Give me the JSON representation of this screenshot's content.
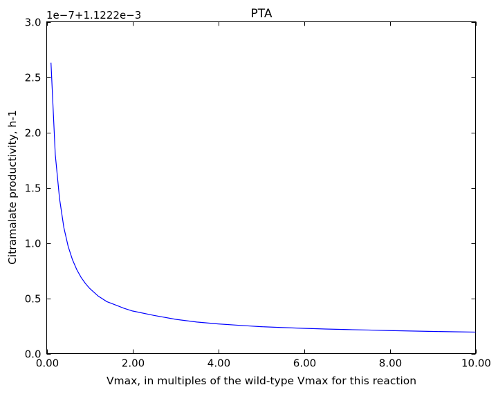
{
  "chart_data": {
    "type": "line",
    "title": "PTA",
    "xlabel": "Vmax, in multiples of the wild-type Vmax for this reaction",
    "ylabel": "Citramalate productivity, h-1",
    "y_offset_text": "1e−7+1.1222e−3",
    "xlim": [
      0,
      10
    ],
    "ylim": [
      0,
      3
    ],
    "x_ticks": [
      0,
      2,
      4,
      6,
      8,
      10
    ],
    "x_tick_labels": [
      "0.00",
      "2.00",
      "4.00",
      "6.00",
      "8.00",
      "10.00"
    ],
    "y_ticks": [
      0,
      0.5,
      1,
      1.5,
      2,
      2.5,
      3
    ],
    "y_tick_labels": [
      "0.0",
      "0.5",
      "1.0",
      "1.5",
      "2.0",
      "2.5",
      "3.0"
    ],
    "grid": false,
    "series": [
      {
        "color": "#0000ff",
        "x": [
          0.1,
          0.2,
          0.3,
          0.4,
          0.5,
          0.6,
          0.7,
          0.8,
          0.9,
          1.0,
          1.2,
          1.4,
          1.6,
          1.8,
          2.0,
          2.5,
          3.0,
          3.5,
          4.0,
          4.5,
          5.0,
          5.5,
          6.0,
          6.5,
          7.0,
          7.5,
          8.0,
          8.5,
          9.0,
          9.5,
          10.0
        ],
        "y": [
          2.63,
          1.8,
          1.4,
          1.14,
          0.97,
          0.85,
          0.76,
          0.69,
          0.635,
          0.59,
          0.52,
          0.47,
          0.44,
          0.41,
          0.385,
          0.345,
          0.31,
          0.285,
          0.268,
          0.255,
          0.243,
          0.235,
          0.228,
          0.222,
          0.217,
          0.213,
          0.208,
          0.204,
          0.2,
          0.197,
          0.194
        ]
      }
    ]
  }
}
